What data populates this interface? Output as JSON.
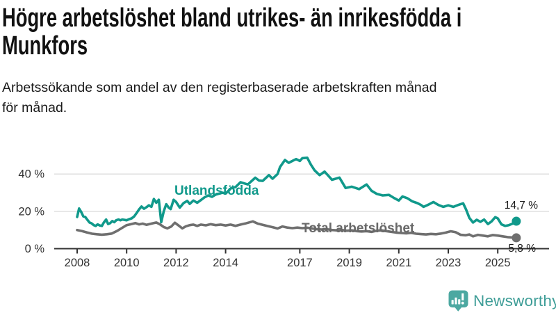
{
  "header": {
    "title_lines": [
      "Högre arbetslöshet bland utrikes- än inrikesfödda i",
      "Munkfors"
    ],
    "subtitle_lines": [
      "Arbetssökande som andel av den registerbaserade arbetskraften månad",
      "för månad."
    ]
  },
  "chart_data": {
    "type": "line",
    "title": "Högre arbetslöshet bland utrikes- än inrikesfödda i Munkfors",
    "subtitle": "Arbetssökande som andel av den registerbaserade arbetskraften månad för månad.",
    "xlabel": "",
    "ylabel": "",
    "grid": "horizontal-only",
    "legend_position": "inline-on-chart",
    "x_ticks": [
      2008,
      2010,
      2012,
      2014,
      2017,
      2019,
      2021,
      2023,
      2025
    ],
    "y_ticks": [
      0,
      20,
      40
    ],
    "y_tick_suffix": " %",
    "xlim": [
      2008,
      2026.2
    ],
    "ylim": [
      0,
      50
    ],
    "axis_color": "#333333",
    "grid_color": "#dcdcdc",
    "series": [
      {
        "name": "Utlandsfödda",
        "color": "#10998b",
        "end_label": "14,7 %",
        "end_value": 14.7,
        "points": [
          [
            2008.0,
            17
          ],
          [
            2008.08,
            21.5
          ],
          [
            2008.17,
            19.5
          ],
          [
            2008.25,
            17.3
          ],
          [
            2008.33,
            17
          ],
          [
            2008.42,
            15.3
          ],
          [
            2008.5,
            14
          ],
          [
            2008.58,
            13.6
          ],
          [
            2008.67,
            12.6
          ],
          [
            2008.75,
            12.2
          ],
          [
            2008.83,
            13
          ],
          [
            2008.92,
            12.4
          ],
          [
            2009.0,
            12.2
          ],
          [
            2009.08,
            14
          ],
          [
            2009.17,
            15.6
          ],
          [
            2009.25,
            13.2
          ],
          [
            2009.33,
            13.6
          ],
          [
            2009.42,
            14.8
          ],
          [
            2009.5,
            14.2
          ],
          [
            2009.58,
            15.2
          ],
          [
            2009.67,
            15.6
          ],
          [
            2009.75,
            15.2
          ],
          [
            2009.83,
            15.6
          ],
          [
            2009.92,
            15.4
          ],
          [
            2010.0,
            15.2
          ],
          [
            2010.1,
            15.8
          ],
          [
            2010.2,
            16.2
          ],
          [
            2010.3,
            17.2
          ],
          [
            2010.4,
            19
          ],
          [
            2010.5,
            21
          ],
          [
            2010.6,
            22.6
          ],
          [
            2010.7,
            21.4
          ],
          [
            2010.8,
            22.2
          ],
          [
            2010.9,
            23.2
          ],
          [
            2011.0,
            22.4
          ],
          [
            2011.1,
            26.6
          ],
          [
            2011.2,
            24.6
          ],
          [
            2011.3,
            26.2
          ],
          [
            2011.4,
            14.2
          ],
          [
            2011.5,
            20
          ],
          [
            2011.6,
            23.8
          ],
          [
            2011.7,
            22
          ],
          [
            2011.78,
            21.2
          ],
          [
            2011.9,
            26.2
          ],
          [
            2012.0,
            25
          ],
          [
            2012.15,
            22
          ],
          [
            2012.3,
            24.4
          ],
          [
            2012.45,
            25.6
          ],
          [
            2012.55,
            24
          ],
          [
            2012.7,
            25.8
          ],
          [
            2012.85,
            24.6
          ],
          [
            2013.0,
            26
          ],
          [
            2013.15,
            27.5
          ],
          [
            2013.3,
            28.5
          ],
          [
            2013.45,
            27.8
          ],
          [
            2013.6,
            29
          ],
          [
            2013.75,
            29.5
          ],
          [
            2013.87,
            30
          ],
          [
            2014.0,
            29.5
          ],
          [
            2014.23,
            32.5
          ],
          [
            2014.4,
            33
          ],
          [
            2014.6,
            35.6
          ],
          [
            2014.9,
            34.4
          ],
          [
            2015.2,
            38
          ],
          [
            2015.35,
            36.5
          ],
          [
            2015.5,
            36.3
          ],
          [
            2015.75,
            39.4
          ],
          [
            2015.9,
            37.5
          ],
          [
            2016.1,
            40
          ],
          [
            2016.2,
            43.7
          ],
          [
            2016.4,
            47.5
          ],
          [
            2016.55,
            46
          ],
          [
            2016.7,
            47
          ],
          [
            2016.85,
            48
          ],
          [
            2017.0,
            47
          ],
          [
            2017.1,
            48.5
          ],
          [
            2017.3,
            48.7
          ],
          [
            2017.45,
            45
          ],
          [
            2017.6,
            41.9
          ],
          [
            2017.8,
            39.4
          ],
          [
            2018.0,
            41.3
          ],
          [
            2018.3,
            36.9
          ],
          [
            2018.6,
            38.1
          ],
          [
            2018.85,
            32.5
          ],
          [
            2019.1,
            33.2
          ],
          [
            2019.4,
            31.9
          ],
          [
            2019.7,
            34.4
          ],
          [
            2019.9,
            31
          ],
          [
            2020.1,
            29.4
          ],
          [
            2020.35,
            28.5
          ],
          [
            2020.6,
            28.8
          ],
          [
            2020.8,
            27.2
          ],
          [
            2021.0,
            25.8
          ],
          [
            2021.15,
            28
          ],
          [
            2021.35,
            27
          ],
          [
            2021.55,
            25.3
          ],
          [
            2021.75,
            24.4
          ],
          [
            2021.9,
            23.4
          ],
          [
            2022.0,
            22.4
          ],
          [
            2022.2,
            23.6
          ],
          [
            2022.4,
            25
          ],
          [
            2022.6,
            23.4
          ],
          [
            2022.8,
            22.4
          ],
          [
            2023.0,
            23.2
          ],
          [
            2023.2,
            22.4
          ],
          [
            2023.4,
            23.4
          ],
          [
            2023.6,
            24.3
          ],
          [
            2023.72,
            21
          ],
          [
            2023.85,
            16.5
          ],
          [
            2024.0,
            14
          ],
          [
            2024.15,
            15.5
          ],
          [
            2024.3,
            14.4
          ],
          [
            2024.45,
            15.6
          ],
          [
            2024.6,
            13.2
          ],
          [
            2024.75,
            14.6
          ],
          [
            2024.9,
            16.9
          ],
          [
            2025.0,
            16.2
          ],
          [
            2025.15,
            13
          ],
          [
            2025.3,
            12.2
          ],
          [
            2025.45,
            12.6
          ],
          [
            2025.6,
            13.4
          ],
          [
            2025.75,
            14.7
          ]
        ]
      },
      {
        "name": "Total arbetslöshet",
        "color": "#6f6f6f",
        "end_label": "5,8 %",
        "end_value": 5.8,
        "points": [
          [
            2008.0,
            10
          ],
          [
            2008.2,
            9.4
          ],
          [
            2008.4,
            8.7
          ],
          [
            2008.6,
            8
          ],
          [
            2008.8,
            7.7
          ],
          [
            2009.0,
            7.5
          ],
          [
            2009.2,
            7.7
          ],
          [
            2009.4,
            8.1
          ],
          [
            2009.6,
            9.4
          ],
          [
            2009.8,
            11
          ],
          [
            2010.0,
            12.6
          ],
          [
            2010.2,
            13.2
          ],
          [
            2010.35,
            13.7
          ],
          [
            2010.5,
            13
          ],
          [
            2010.65,
            13.4
          ],
          [
            2010.8,
            12.8
          ],
          [
            2011.0,
            13.4
          ],
          [
            2011.2,
            14
          ],
          [
            2011.35,
            13
          ],
          [
            2011.5,
            11.6
          ],
          [
            2011.65,
            10.9
          ],
          [
            2011.8,
            11.8
          ],
          [
            2011.95,
            13.9
          ],
          [
            2012.1,
            12.4
          ],
          [
            2012.25,
            10.9
          ],
          [
            2012.4,
            12
          ],
          [
            2012.55,
            12.6
          ],
          [
            2012.7,
            12.9
          ],
          [
            2012.85,
            12.2
          ],
          [
            2013.0,
            12.9
          ],
          [
            2013.2,
            12.5
          ],
          [
            2013.4,
            13.1
          ],
          [
            2013.6,
            12.6
          ],
          [
            2013.8,
            12.9
          ],
          [
            2014.0,
            12.4
          ],
          [
            2014.2,
            12.9
          ],
          [
            2014.4,
            12.2
          ],
          [
            2014.6,
            12.9
          ],
          [
            2014.8,
            13.5
          ],
          [
            2015.1,
            14.6
          ],
          [
            2015.3,
            13.4
          ],
          [
            2015.5,
            12.8
          ],
          [
            2015.7,
            12.1
          ],
          [
            2015.9,
            11.5
          ],
          [
            2016.1,
            10.8
          ],
          [
            2016.3,
            11.9
          ],
          [
            2016.5,
            11.3
          ],
          [
            2016.7,
            11
          ],
          [
            2016.9,
            11.3
          ],
          [
            2017.1,
            11
          ],
          [
            2017.3,
            11.2
          ],
          [
            2017.5,
            10.8
          ],
          [
            2017.7,
            10.4
          ],
          [
            2017.9,
            10.2
          ],
          [
            2018.1,
            10.4
          ],
          [
            2018.3,
            10
          ],
          [
            2018.5,
            9.8
          ],
          [
            2018.7,
            10
          ],
          [
            2018.9,
            9.6
          ],
          [
            2019.1,
            9.8
          ],
          [
            2019.3,
            9.4
          ],
          [
            2019.5,
            9.2
          ],
          [
            2019.7,
            9.4
          ],
          [
            2019.9,
            9
          ],
          [
            2020.1,
            9.6
          ],
          [
            2020.3,
            9.8
          ],
          [
            2020.5,
            9.4
          ],
          [
            2020.7,
            9
          ],
          [
            2020.9,
            8.6
          ],
          [
            2021.1,
            8.4
          ],
          [
            2021.3,
            8.2
          ],
          [
            2021.5,
            8.5
          ],
          [
            2021.7,
            8
          ],
          [
            2021.9,
            7.8
          ],
          [
            2022.1,
            7.6
          ],
          [
            2022.3,
            7.9
          ],
          [
            2022.5,
            7.7
          ],
          [
            2022.7,
            8.1
          ],
          [
            2022.9,
            8.6
          ],
          [
            2023.1,
            9.3
          ],
          [
            2023.3,
            8.8
          ],
          [
            2023.5,
            7.4
          ],
          [
            2023.7,
            7.2
          ],
          [
            2023.85,
            7.6
          ],
          [
            2024.0,
            6.6
          ],
          [
            2024.2,
            7.4
          ],
          [
            2024.4,
            7
          ],
          [
            2024.6,
            6.6
          ],
          [
            2024.8,
            7.3
          ],
          [
            2025.0,
            7
          ],
          [
            2025.2,
            6.6
          ],
          [
            2025.4,
            6.2
          ],
          [
            2025.6,
            6
          ],
          [
            2025.75,
            5.8
          ]
        ]
      }
    ]
  },
  "branding": {
    "logo_text": "Newsworthy",
    "logo_text_color": "#3e9d97",
    "logo_icon_color": "#4ca8a1"
  }
}
